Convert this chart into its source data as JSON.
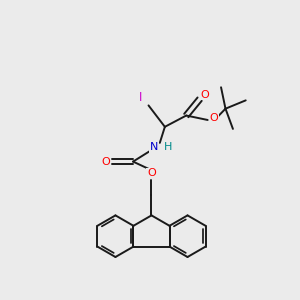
{
  "bg_color": "#ebebeb",
  "atom_colors": {
    "O": "#ff0000",
    "N": "#0000cc",
    "H": "#008b8b",
    "I": "#cc00cc"
  },
  "bond_color": "#1a1a1a",
  "bond_width": 1.4,
  "fig_size": [
    3.0,
    3.0
  ],
  "dpi": 100,
  "xlim": [
    0,
    10
  ],
  "ylim": [
    0,
    10
  ]
}
